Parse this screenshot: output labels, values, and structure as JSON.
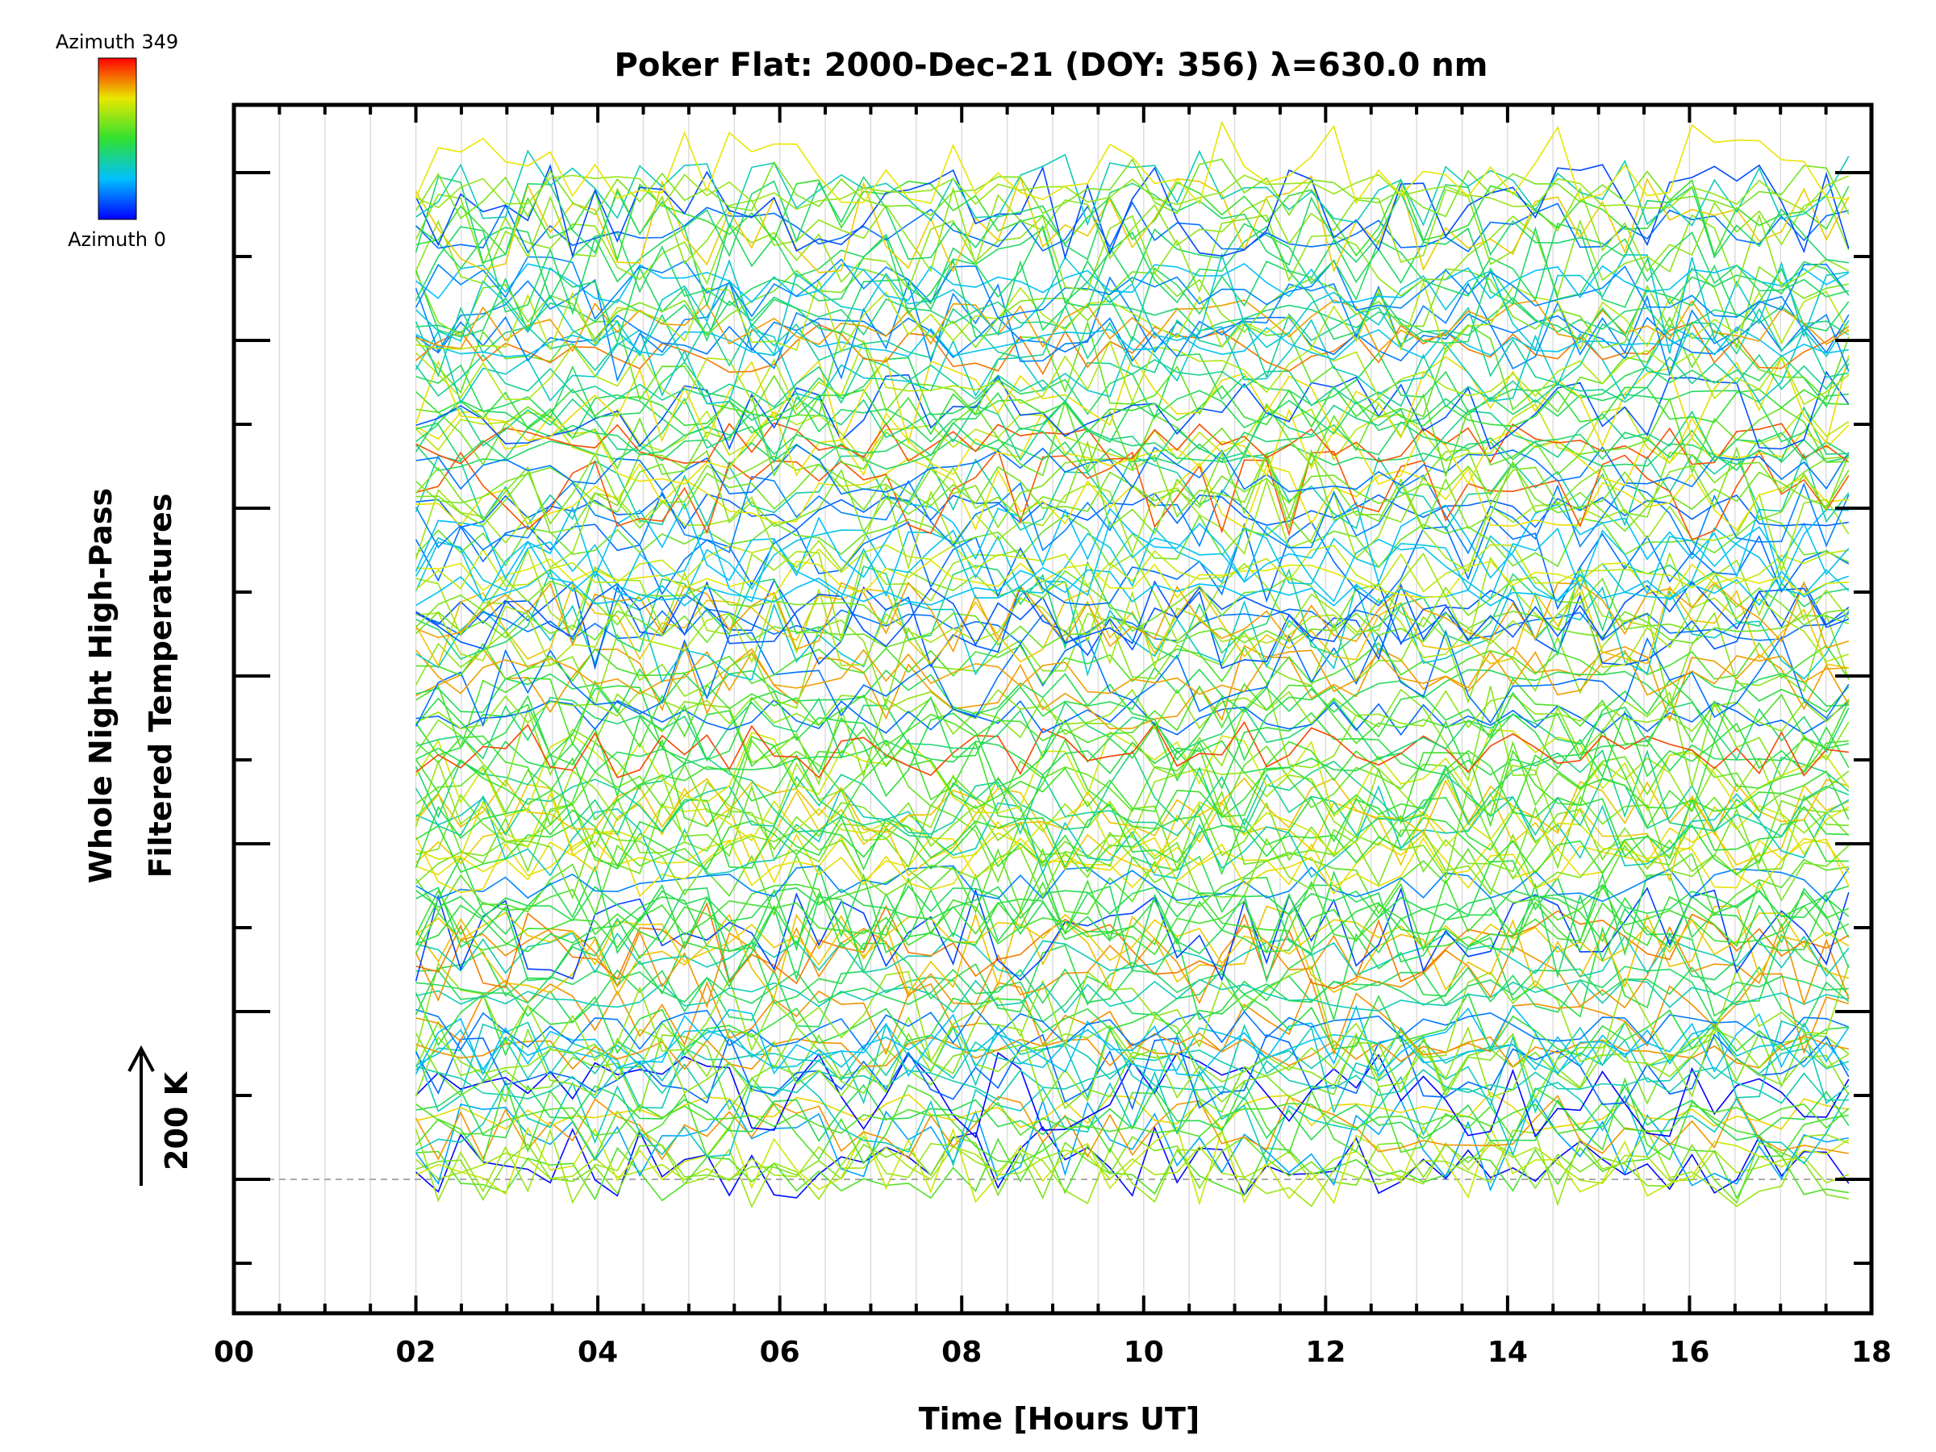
{
  "chart_data": {
    "type": "line",
    "title": "Poker Flat: 2000-Dec-21 (DOY: 356) λ=630.0 nm",
    "xlabel": "Time [Hours UT]",
    "ylabel_line1": "Whole Night High-Pass",
    "ylabel_line2": "Filtered Temperatures",
    "scale_label": "200 K",
    "xlim": [
      0,
      18
    ],
    "x_ticks": [
      "00",
      "02",
      "04",
      "06",
      "08",
      "10",
      "12",
      "14",
      "16",
      "18"
    ],
    "x_range_of_data": [
      2.0,
      17.75
    ],
    "grid": "vertical lines every 0.5 h",
    "reference_line": "dashed horizontal baseline near bottom",
    "colorbar": {
      "top_label": "Azimuth 349",
      "bottom_label": "Azimuth 0",
      "colormap": "rainbow (blue → cyan → green → yellow → red)"
    },
    "series_note": "Many stacked, vertically offset traces (one per azimuth), each colored by azimuth from blue (0) to red (349)."
  }
}
